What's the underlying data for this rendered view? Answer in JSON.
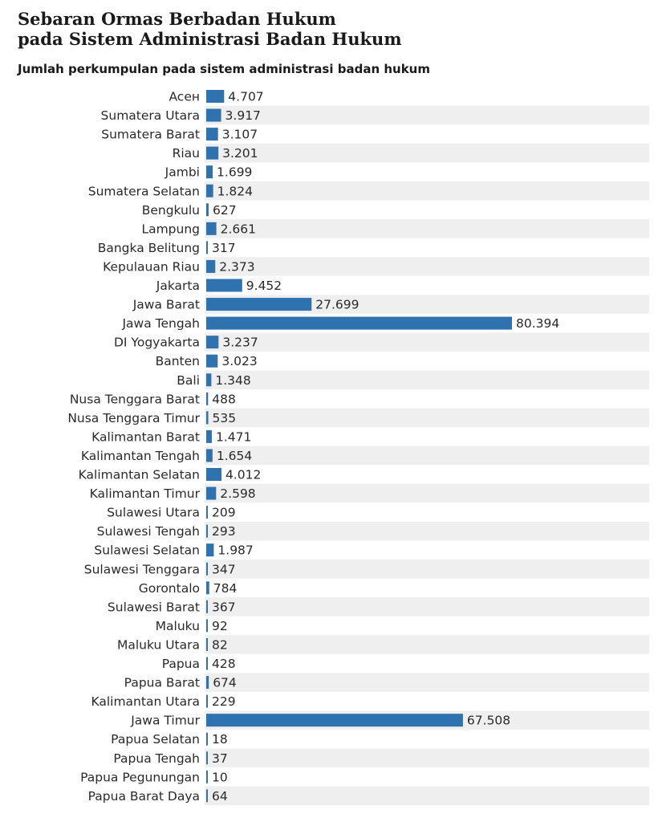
{
  "chart_data": {
    "type": "bar",
    "orientation": "horizontal",
    "title": "Sebaran Ormas Berbadan Hukum pada Sistem Administrasi Badan Hukum",
    "title_lines": [
      "Sebaran Ormas Berbadan Hukum",
      "pada Sistem Administrasi Badan Hukum"
    ],
    "subtitle": "Jumlah perkumpulan pada sistem administrasi badan hukum",
    "categories": [
      "Aceн",
      "Sumatera Utara",
      "Sumatera Barat",
      "Riau",
      "Jambi",
      "Sumatera Selatan",
      "Bengkulu",
      "Lampung",
      "Bangka Belitung",
      "Kepulauan Riau",
      "Jakarta",
      "Jawa Barat",
      "Jawa Tengah",
      "DI Yogyakarta",
      "Banten",
      "Bali",
      "Nusa Tenggara Barat",
      "Nusa Tenggara Timur",
      "Kalimantan Barat",
      "Kalimantan Tengah",
      "Kalimantan Selatan",
      "Kalimantan Timur",
      "Sulawesi Utara",
      "Sulawesi Tengah",
      "Sulawesi Selatan",
      "Sulawesi Tenggara",
      "Gorontalo",
      "Sulawesi Barat",
      "Maluku",
      "Maluku Utara",
      "Papua",
      "Papua Barat",
      "Kalimantan Utara",
      "Jawa Timur",
      "Papua Selatan",
      "Papua Tengah",
      "Papua Pegunungan",
      "Papua Barat Daya"
    ],
    "values": [
      4707,
      3917,
      3107,
      3201,
      1699,
      1824,
      627,
      2661,
      317,
      2373,
      9452,
      27699,
      80394,
      3237,
      3023,
      1348,
      488,
      535,
      1471,
      1654,
      4012,
      2598,
      209,
      293,
      1987,
      347,
      784,
      367,
      92,
      82,
      428,
      674,
      229,
      67508,
      18,
      37,
      10,
      64
    ],
    "value_labels": [
      "4.707",
      "3.917",
      "3.107",
      "3.201",
      "1.699",
      "1.824",
      "627",
      "2.661",
      "317",
      "2.373",
      "9.452",
      "27.699",
      "80.394",
      "3.237",
      "3.023",
      "1.348",
      "488",
      "535",
      "1.471",
      "1.654",
      "4.012",
      "2.598",
      "209",
      "293",
      "1.987",
      "347",
      "784",
      "367",
      "92",
      "82",
      "428",
      "674",
      "229",
      "67.508",
      "18",
      "37",
      "10",
      "64"
    ],
    "xlim": [
      0,
      80394
    ],
    "grid": false,
    "legend": "none",
    "colors": {
      "bar": "#2e73b0",
      "band": "#efefef",
      "text": "#2a2a2a"
    }
  }
}
